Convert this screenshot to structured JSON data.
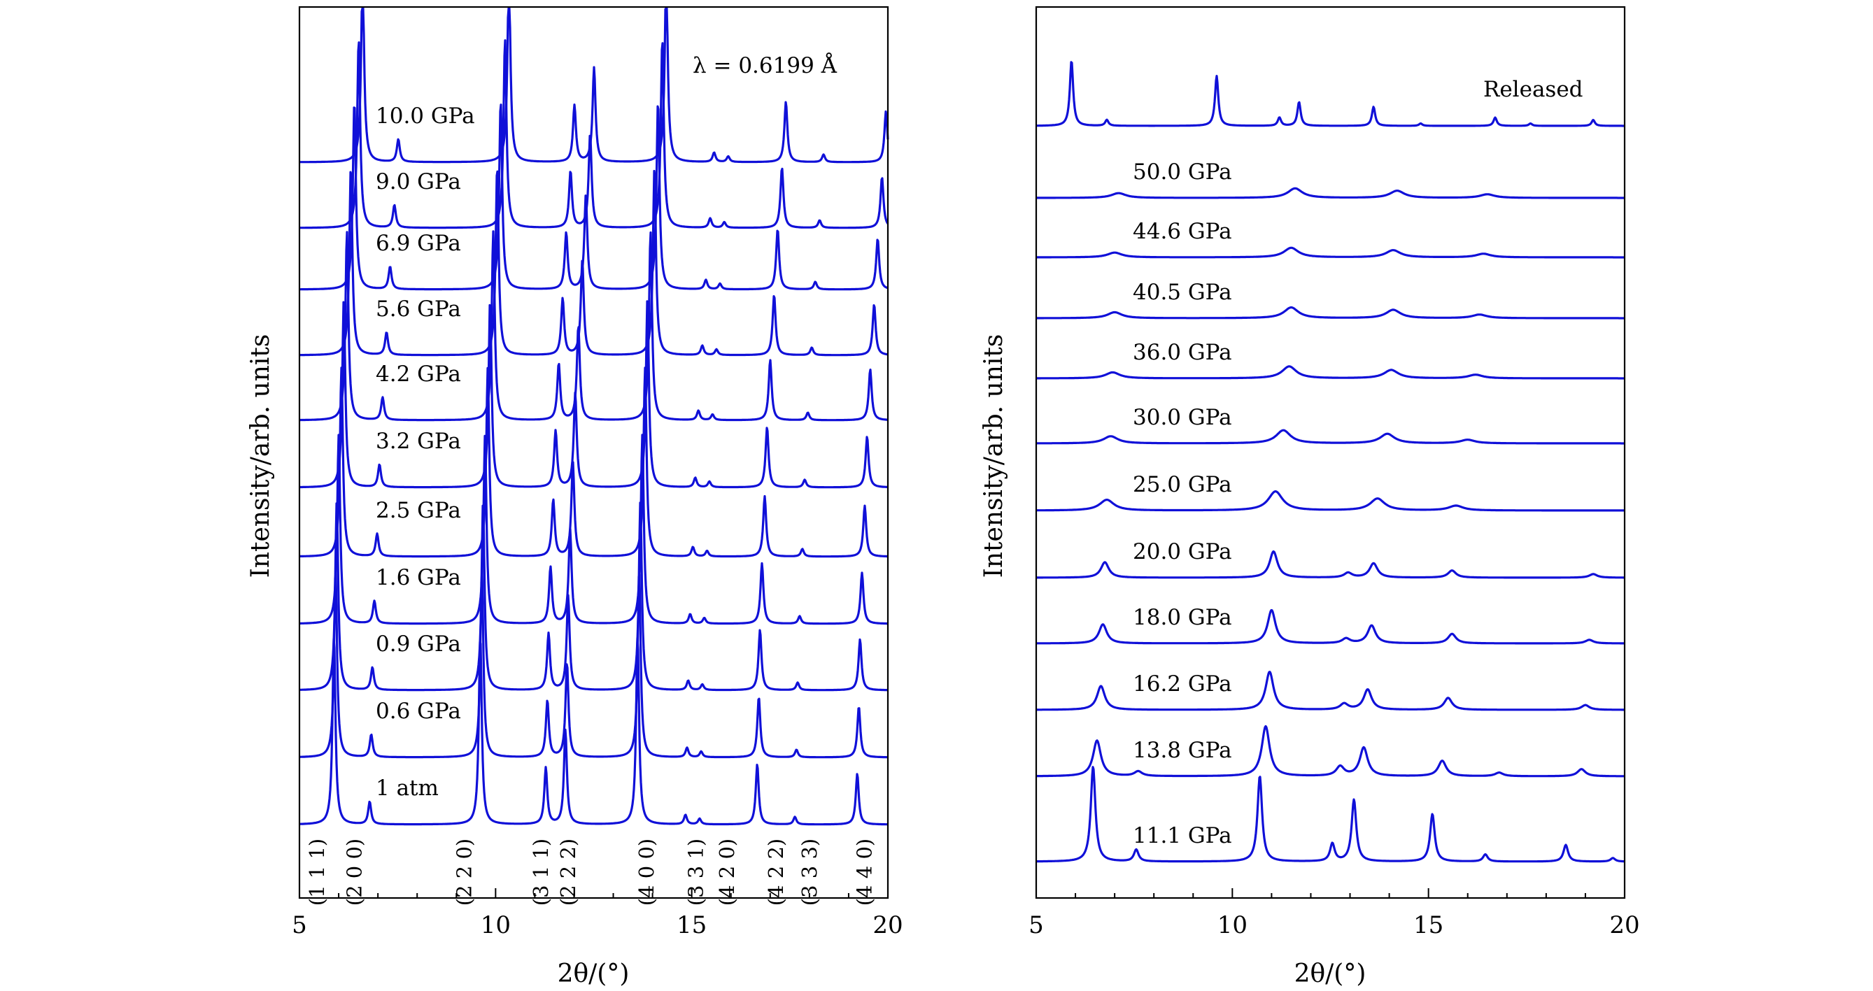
{
  "chart_data": [
    {
      "type": "line",
      "panel": "left",
      "xlabel": "2θ/(°)",
      "ylabel": "Intensity/arb. units",
      "xlim": [
        5,
        20
      ],
      "xticks": [
        "5",
        "10",
        "15",
        "20"
      ],
      "annotation": "λ = 0.6199 Å",
      "reflections": [
        {
          "hkl": "(1 1 1)",
          "x": 5.45
        },
        {
          "hkl": "(2 0 0)",
          "x": 6.4
        },
        {
          "hkl": "(2 2 0)",
          "x": 9.2
        },
        {
          "hkl": "(3 1 1)",
          "x": 11.15
        },
        {
          "hkl": "(2 2 2)",
          "x": 11.85
        },
        {
          "hkl": "(4 0 0)",
          "x": 13.85
        },
        {
          "hkl": "(3 3 1)",
          "x": 15.1
        },
        {
          "hkl": "(4 2 0)",
          "x": 15.9
        },
        {
          "hkl": "(4 2 2)",
          "x": 17.15
        },
        {
          "hkl": "(3 3 3)",
          "x": 18.0
        },
        {
          "hkl": "(4 4 0)",
          "x": 19.4
        }
      ],
      "series": [
        {
          "name": "10.0 GPa",
          "shift": 0.73,
          "amp": 1.0
        },
        {
          "name": "9.0 GPa",
          "shift": 0.63,
          "amp": 1.0
        },
        {
          "name": "6.9 GPa",
          "shift": 0.52,
          "amp": 1.0
        },
        {
          "name": "5.6 GPa",
          "shift": 0.43,
          "amp": 1.0
        },
        {
          "name": "4.2 GPa",
          "shift": 0.33,
          "amp": 1.0
        },
        {
          "name": "3.2 GPa",
          "shift": 0.25,
          "amp": 1.0
        },
        {
          "name": "2.5 GPa",
          "shift": 0.19,
          "amp": 1.0
        },
        {
          "name": "1.6 GPa",
          "shift": 0.12,
          "amp": 1.0
        },
        {
          "name": "0.9 GPa",
          "shift": 0.07,
          "amp": 1.0
        },
        {
          "name": "0.6 GPa",
          "shift": 0.04,
          "amp": 1.0
        },
        {
          "name": "1 atm",
          "shift": 0.0,
          "amp": 1.0
        }
      ],
      "peaks": [
        {
          "x": 5.88,
          "h": 1.0
        },
        {
          "x": 6.79,
          "h": 0.12
        },
        {
          "x": 9.61,
          "h": 1.0
        },
        {
          "x": 11.28,
          "h": 0.3
        },
        {
          "x": 11.78,
          "h": 0.5
        },
        {
          "x": 13.62,
          "h": 1.0
        },
        {
          "x": 14.84,
          "h": 0.05
        },
        {
          "x": 15.2,
          "h": 0.03
        },
        {
          "x": 16.67,
          "h": 0.32
        },
        {
          "x": 17.63,
          "h": 0.04
        },
        {
          "x": 19.22,
          "h": 0.27
        }
      ]
    },
    {
      "type": "line",
      "panel": "right",
      "xlabel": "2θ/(°)",
      "ylabel": "Intensity/arb. units",
      "xlim": [
        5,
        20
      ],
      "xticks": [
        "5",
        "10",
        "15",
        "20"
      ],
      "series": [
        {
          "name": "Released",
          "peaks": [
            [
              5.9,
              0.55
            ],
            [
              6.8,
              0.05
            ],
            [
              9.6,
              0.42
            ],
            [
              11.2,
              0.07
            ],
            [
              11.7,
              0.2
            ],
            [
              13.6,
              0.16
            ],
            [
              14.8,
              0.02
            ],
            [
              16.7,
              0.07
            ],
            [
              17.6,
              0.02
            ],
            [
              19.2,
              0.05
            ]
          ]
        },
        {
          "name": "50.0 GPa",
          "peaks": [
            [
              7.1,
              0.04
            ],
            [
              11.6,
              0.08
            ],
            [
              14.2,
              0.06
            ],
            [
              16.5,
              0.03
            ]
          ]
        },
        {
          "name": "44.6 GPa",
          "peaks": [
            [
              7.0,
              0.04
            ],
            [
              11.5,
              0.08
            ],
            [
              14.1,
              0.06
            ],
            [
              16.4,
              0.03
            ]
          ]
        },
        {
          "name": "40.5 GPa",
          "peaks": [
            [
              7.0,
              0.05
            ],
            [
              11.5,
              0.09
            ],
            [
              14.1,
              0.07
            ],
            [
              16.3,
              0.03
            ]
          ]
        },
        {
          "name": "36.0 GPa",
          "peaks": [
            [
              6.95,
              0.05
            ],
            [
              11.45,
              0.1
            ],
            [
              14.05,
              0.07
            ],
            [
              16.2,
              0.03
            ]
          ]
        },
        {
          "name": "30.0 GPa",
          "peaks": [
            [
              6.9,
              0.06
            ],
            [
              11.3,
              0.11
            ],
            [
              13.95,
              0.08
            ],
            [
              16.0,
              0.03
            ]
          ]
        },
        {
          "name": "25.0 GPa",
          "peaks": [
            [
              6.8,
              0.09
            ],
            [
              11.1,
              0.16
            ],
            [
              13.7,
              0.1
            ],
            [
              15.7,
              0.04
            ]
          ]
        },
        {
          "name": "20.0 GPa",
          "peaks": [
            [
              6.75,
              0.13
            ],
            [
              11.05,
              0.22
            ],
            [
              12.95,
              0.04
            ],
            [
              13.6,
              0.12
            ],
            [
              15.6,
              0.06
            ],
            [
              19.2,
              0.03
            ]
          ]
        },
        {
          "name": "18.0 GPa",
          "peaks": [
            [
              6.7,
              0.16
            ],
            [
              11.0,
              0.28
            ],
            [
              12.9,
              0.04
            ],
            [
              13.55,
              0.15
            ],
            [
              15.6,
              0.08
            ],
            [
              19.1,
              0.03
            ]
          ]
        },
        {
          "name": "16.2 GPa",
          "peaks": [
            [
              6.65,
              0.2
            ],
            [
              10.95,
              0.32
            ],
            [
              12.85,
              0.05
            ],
            [
              13.45,
              0.17
            ],
            [
              15.5,
              0.1
            ],
            [
              19.0,
              0.04
            ]
          ]
        },
        {
          "name": "13.8 GPa",
          "peaks": [
            [
              6.55,
              0.3
            ],
            [
              7.6,
              0.04
            ],
            [
              10.85,
              0.42
            ],
            [
              12.75,
              0.08
            ],
            [
              13.35,
              0.24
            ],
            [
              15.35,
              0.13
            ],
            [
              16.8,
              0.03
            ],
            [
              18.9,
              0.06
            ]
          ]
        },
        {
          "name": "11.1 GPa",
          "peaks": [
            [
              6.45,
              0.8
            ],
            [
              7.55,
              0.1
            ],
            [
              10.7,
              0.72
            ],
            [
              12.55,
              0.15
            ],
            [
              13.1,
              0.52
            ],
            [
              15.1,
              0.4
            ],
            [
              16.45,
              0.06
            ],
            [
              18.5,
              0.14
            ],
            [
              19.7,
              0.03
            ]
          ]
        }
      ]
    }
  ]
}
